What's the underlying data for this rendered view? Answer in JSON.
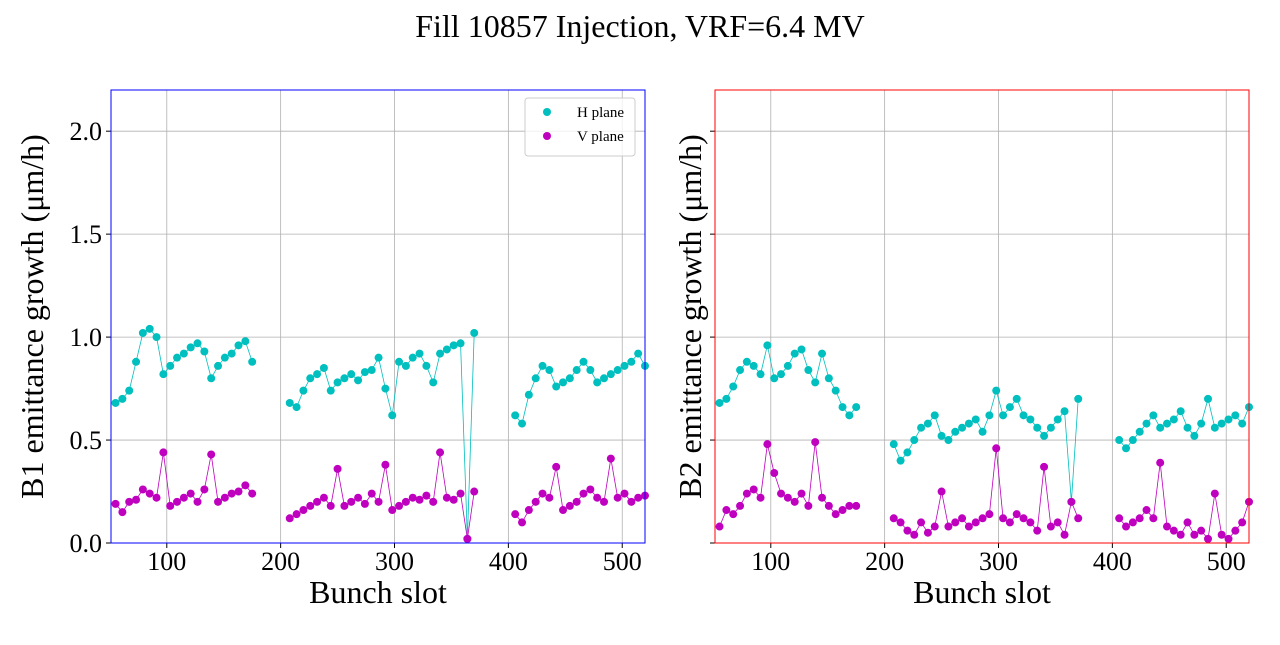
{
  "title": "Fill 10857 Injection, VRF=6.4 MV",
  "chart_data": [
    {
      "type": "line",
      "xlabel": "Bunch slot",
      "ylabel": "B1 emittance growth (μm/h)",
      "xlim": [
        51,
        520
      ],
      "ylim": [
        0,
        2.2
      ],
      "xticks": [
        100,
        200,
        300,
        400,
        500
      ],
      "yticks": [
        {
          "value": 0,
          "label": "0.0"
        },
        0.5,
        {
          "value": 1,
          "label": "1.0"
        },
        1.5,
        {
          "value": 2,
          "label": "2.0"
        }
      ],
      "ytick_labels": true,
      "grid": true,
      "legend": "upper right",
      "frame_color": "#0000ff",
      "markers": true,
      "x": [
        55,
        61,
        67,
        73,
        79,
        85,
        91,
        97,
        103,
        109,
        115,
        121,
        127,
        133,
        139,
        145,
        151,
        157,
        163,
        169,
        175,
        190,
        208,
        214,
        220,
        226,
        232,
        238,
        244,
        250,
        256,
        262,
        268,
        274,
        280,
        286,
        292,
        298,
        304,
        310,
        316,
        322,
        328,
        334,
        340,
        346,
        352,
        358,
        364,
        370,
        390,
        406,
        412,
        418,
        424,
        430,
        436,
        442,
        448,
        454,
        460,
        466,
        472,
        478,
        484,
        490,
        496,
        502,
        508,
        514,
        520
      ],
      "series": [
        {
          "name": "H plane",
          "color": "#00bfbf",
          "values": [
            0.68,
            0.7,
            0.74,
            0.88,
            1.02,
            1.04,
            1.0,
            0.82,
            0.86,
            0.9,
            0.92,
            0.95,
            0.97,
            0.93,
            0.8,
            0.86,
            0.9,
            0.92,
            0.96,
            0.98,
            0.88,
            null,
            0.68,
            0.66,
            0.74,
            0.8,
            0.82,
            0.85,
            0.74,
            0.78,
            0.8,
            0.82,
            0.79,
            0.83,
            0.84,
            0.9,
            0.75,
            0.62,
            0.88,
            0.86,
            0.9,
            0.92,
            0.86,
            0.78,
            0.92,
            0.94,
            0.96,
            0.97,
            0.02,
            1.02,
            null,
            0.62,
            0.58,
            0.72,
            0.8,
            0.86,
            0.84,
            0.76,
            0.78,
            0.8,
            0.84,
            0.88,
            0.84,
            0.78,
            0.8,
            0.82,
            0.84,
            0.86,
            0.88,
            0.92,
            0.86
          ]
        },
        {
          "name": "V plane",
          "color": "#bf00bf",
          "values": [
            0.19,
            0.15,
            0.2,
            0.21,
            0.26,
            0.24,
            0.22,
            0.44,
            0.18,
            0.2,
            0.22,
            0.24,
            0.2,
            0.26,
            0.43,
            0.2,
            0.22,
            0.24,
            0.25,
            0.28,
            0.24,
            null,
            0.12,
            0.14,
            0.16,
            0.18,
            0.2,
            0.22,
            0.18,
            0.36,
            0.18,
            0.2,
            0.22,
            0.19,
            0.24,
            0.2,
            0.38,
            0.16,
            0.18,
            0.2,
            0.22,
            0.21,
            0.23,
            0.2,
            0.44,
            0.22,
            0.21,
            0.24,
            0.02,
            0.25,
            null,
            0.14,
            0.1,
            0.16,
            0.2,
            0.24,
            0.22,
            0.37,
            0.16,
            0.18,
            0.2,
            0.24,
            0.26,
            0.22,
            0.2,
            0.41,
            0.22,
            0.24,
            0.2,
            0.22,
            0.23
          ]
        }
      ]
    },
    {
      "type": "line",
      "xlabel": "Bunch slot",
      "ylabel": "B2 emittance growth (μm/h)",
      "xlim": [
        51,
        520
      ],
      "ylim": [
        0,
        2.2
      ],
      "xticks": [
        100,
        200,
        300,
        400,
        500
      ],
      "yticks": [
        0,
        0.5,
        1,
        1.5,
        2
      ],
      "ytick_labels": false,
      "grid": true,
      "legend": false,
      "frame_color": "#ff0000",
      "markers": true,
      "x": [
        55,
        61,
        67,
        73,
        79,
        85,
        91,
        97,
        103,
        109,
        115,
        121,
        127,
        133,
        139,
        145,
        151,
        157,
        163,
        169,
        175,
        190,
        208,
        214,
        220,
        226,
        232,
        238,
        244,
        250,
        256,
        262,
        268,
        274,
        280,
        286,
        292,
        298,
        304,
        310,
        316,
        322,
        328,
        334,
        340,
        346,
        352,
        358,
        364,
        370,
        390,
        406,
        412,
        418,
        424,
        430,
        436,
        442,
        448,
        454,
        460,
        466,
        472,
        478,
        484,
        490,
        496,
        502,
        508,
        514,
        520
      ],
      "series": [
        {
          "name": "H plane",
          "color": "#00bfbf",
          "values": [
            0.68,
            0.7,
            0.76,
            0.84,
            0.88,
            0.86,
            0.82,
            0.96,
            0.8,
            0.82,
            0.86,
            0.92,
            0.94,
            0.84,
            0.78,
            0.92,
            0.8,
            0.74,
            0.66,
            0.62,
            0.66,
            null,
            0.48,
            0.4,
            0.44,
            0.5,
            0.56,
            0.58,
            0.62,
            0.52,
            0.5,
            0.54,
            0.56,
            0.58,
            0.6,
            0.54,
            0.62,
            0.74,
            0.62,
            0.66,
            0.7,
            0.62,
            0.6,
            0.56,
            0.52,
            0.56,
            0.6,
            0.64,
            0.2,
            0.7,
            null,
            0.5,
            0.46,
            0.5,
            0.54,
            0.58,
            0.62,
            0.56,
            0.58,
            0.6,
            0.64,
            0.56,
            0.52,
            0.58,
            0.7,
            0.56,
            0.58,
            0.6,
            0.62,
            0.58,
            0.66
          ]
        },
        {
          "name": "V plane",
          "color": "#bf00bf",
          "values": [
            0.08,
            0.16,
            0.14,
            0.18,
            0.24,
            0.26,
            0.22,
            0.48,
            0.34,
            0.24,
            0.22,
            0.2,
            0.24,
            0.18,
            0.49,
            0.22,
            0.18,
            0.14,
            0.16,
            0.18,
            0.18,
            null,
            0.12,
            0.1,
            0.06,
            0.04,
            0.1,
            0.05,
            0.08,
            0.25,
            0.08,
            0.1,
            0.12,
            0.08,
            0.1,
            0.12,
            0.14,
            0.46,
            0.12,
            0.1,
            0.14,
            0.12,
            0.1,
            0.06,
            0.37,
            0.08,
            0.1,
            0.04,
            0.2,
            0.12,
            null,
            0.12,
            0.08,
            0.1,
            0.12,
            0.16,
            0.12,
            0.39,
            0.08,
            0.06,
            0.04,
            0.1,
            0.04,
            0.06,
            0.02,
            0.24,
            0.04,
            0.02,
            0.06,
            0.1,
            0.2
          ]
        }
      ]
    }
  ]
}
